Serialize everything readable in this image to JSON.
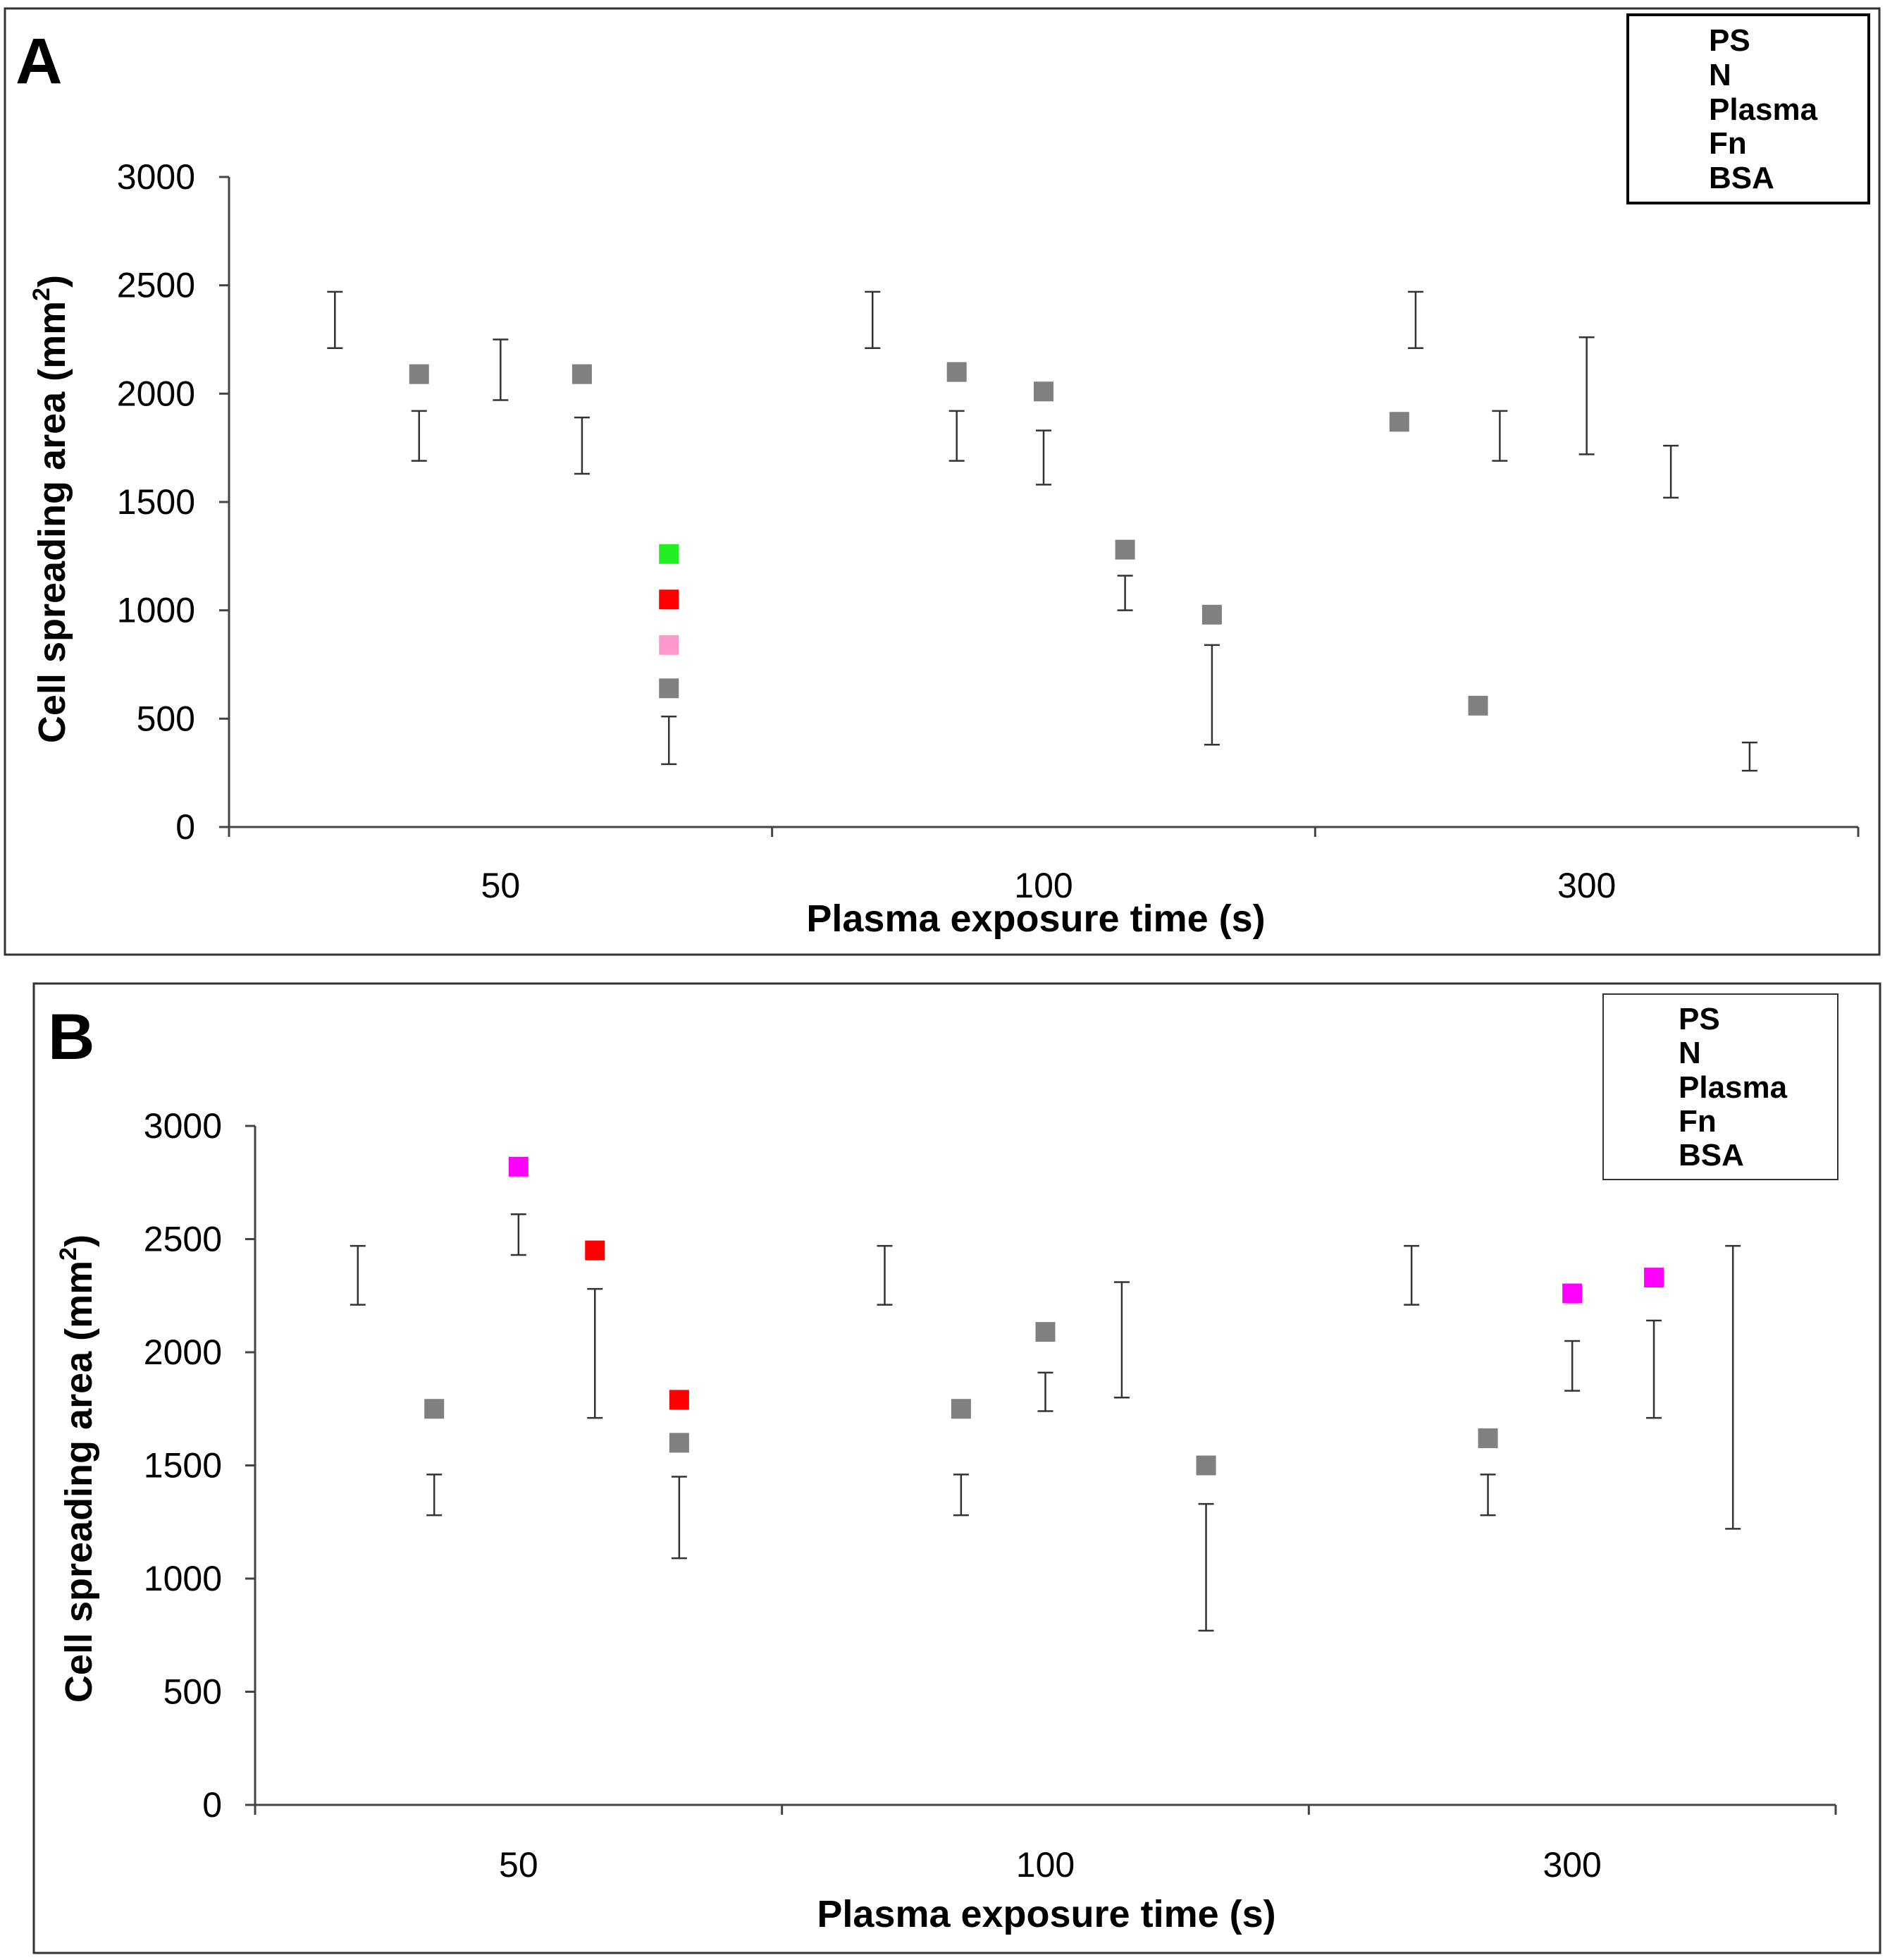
{
  "colors": {
    "gray": "#808080",
    "green": "#22ee22",
    "red": "#ff0000",
    "pink": "#ff99cc",
    "magenta": "#ff00ff",
    "errorbar": "#333333"
  },
  "chart_data": [
    {
      "panel": "A",
      "type": "scatter",
      "xlabel": "Plasma exposure time (s)",
      "ylabel_main": "Cell spreading area (mm",
      "ylabel_sup": "2",
      "ylabel_close": ")",
      "ylim": [
        0,
        3000
      ],
      "yticks": [
        0,
        500,
        1000,
        1500,
        2000,
        2500,
        3000
      ],
      "ytick_labels": [
        "0",
        "500",
        "1000",
        "1500",
        "2000",
        "2500",
        "3000"
      ],
      "categories": [
        "50",
        "100",
        "300"
      ],
      "slots_per_category": 6,
      "legend": [
        "PS",
        "N",
        "Plasma",
        "Fn",
        "BSA"
      ],
      "markers": [
        {
          "pos": 0.7,
          "value": 2090,
          "color": "gray"
        },
        {
          "pos": 1.3,
          "value": 2090,
          "color": "gray"
        },
        {
          "pos": 1.62,
          "value": 1260,
          "color": "green"
        },
        {
          "pos": 1.62,
          "value": 1050,
          "color": "red"
        },
        {
          "pos": 1.62,
          "value": 840,
          "color": "pink"
        },
        {
          "pos": 1.62,
          "value": 640,
          "color": "gray"
        },
        {
          "pos": 2.68,
          "value": 2100,
          "color": "gray"
        },
        {
          "pos": 3.0,
          "value": 2010,
          "color": "gray"
        },
        {
          "pos": 3.3,
          "value": 1280,
          "color": "gray"
        },
        {
          "pos": 3.62,
          "value": 980,
          "color": "gray"
        },
        {
          "pos": 4.31,
          "value": 1870,
          "color": "gray"
        },
        {
          "pos": 4.6,
          "value": 560,
          "color": "gray"
        }
      ],
      "errorbars": [
        {
          "pos": 0.39,
          "low": 2210,
          "high": 2470
        },
        {
          "pos": 0.7,
          "low": 1690,
          "high": 1920
        },
        {
          "pos": 1.0,
          "low": 1970,
          "high": 2250
        },
        {
          "pos": 1.3,
          "low": 1630,
          "high": 1890
        },
        {
          "pos": 1.62,
          "low": 290,
          "high": 510
        },
        {
          "pos": 2.37,
          "low": 2210,
          "high": 2470
        },
        {
          "pos": 2.68,
          "low": 1690,
          "high": 1920
        },
        {
          "pos": 3.0,
          "low": 1580,
          "high": 1830
        },
        {
          "pos": 3.3,
          "low": 1000,
          "high": 1160
        },
        {
          "pos": 3.62,
          "low": 380,
          "high": 840
        },
        {
          "pos": 4.37,
          "low": 2210,
          "high": 2470
        },
        {
          "pos": 4.68,
          "low": 1690,
          "high": 1920
        },
        {
          "pos": 5.0,
          "low": 1720,
          "high": 2260
        },
        {
          "pos": 5.31,
          "low": 1520,
          "high": 1760
        },
        {
          "pos": 5.6,
          "low": 260,
          "high": 390
        }
      ]
    },
    {
      "panel": "B",
      "type": "scatter",
      "xlabel": "Plasma exposure time (s)",
      "ylabel_main": "Cell spreading area (mm",
      "ylabel_sup": "2",
      "ylabel_close": ")",
      "ylim": [
        0,
        3000
      ],
      "yticks": [
        0,
        500,
        1000,
        1500,
        2000,
        2500,
        3000
      ],
      "ytick_labels": [
        "0",
        "500",
        "1000",
        "1500",
        "2000",
        "2500",
        "3000"
      ],
      "categories": [
        "50",
        "100",
        "300"
      ],
      "slots_per_category": 6,
      "legend": [
        "PS",
        "N",
        "Plasma",
        "Fn",
        "BSA"
      ],
      "markers": [
        {
          "pos": 0.68,
          "value": 1750,
          "color": "gray"
        },
        {
          "pos": 1.0,
          "value": 2820,
          "color": "magenta"
        },
        {
          "pos": 1.29,
          "value": 2450,
          "color": "red"
        },
        {
          "pos": 1.61,
          "value": 1790,
          "color": "red"
        },
        {
          "pos": 1.61,
          "value": 1600,
          "color": "gray"
        },
        {
          "pos": 2.68,
          "value": 1750,
          "color": "gray"
        },
        {
          "pos": 3.0,
          "value": 2090,
          "color": "gray"
        },
        {
          "pos": 3.61,
          "value": 1500,
          "color": "gray"
        },
        {
          "pos": 4.68,
          "value": 1620,
          "color": "gray"
        },
        {
          "pos": 5.0,
          "value": 2260,
          "color": "magenta"
        },
        {
          "pos": 5.31,
          "value": 2330,
          "color": "magenta"
        }
      ],
      "errorbars": [
        {
          "pos": 0.39,
          "low": 2210,
          "high": 2470
        },
        {
          "pos": 0.68,
          "low": 1280,
          "high": 1460
        },
        {
          "pos": 1.0,
          "low": 2430,
          "high": 2610
        },
        {
          "pos": 1.29,
          "low": 1710,
          "high": 2280
        },
        {
          "pos": 1.61,
          "low": 1090,
          "high": 1450
        },
        {
          "pos": 2.39,
          "low": 2210,
          "high": 2470
        },
        {
          "pos": 2.68,
          "low": 1280,
          "high": 1460
        },
        {
          "pos": 3.0,
          "low": 1740,
          "high": 1910
        },
        {
          "pos": 3.29,
          "low": 1800,
          "high": 2310
        },
        {
          "pos": 3.61,
          "low": 770,
          "high": 1330
        },
        {
          "pos": 4.39,
          "low": 2210,
          "high": 2470
        },
        {
          "pos": 4.68,
          "low": 1280,
          "high": 1460
        },
        {
          "pos": 5.0,
          "low": 1830,
          "high": 2050
        },
        {
          "pos": 5.31,
          "low": 1710,
          "high": 2140
        },
        {
          "pos": 5.61,
          "low": 1220,
          "high": 2470
        }
      ]
    }
  ]
}
